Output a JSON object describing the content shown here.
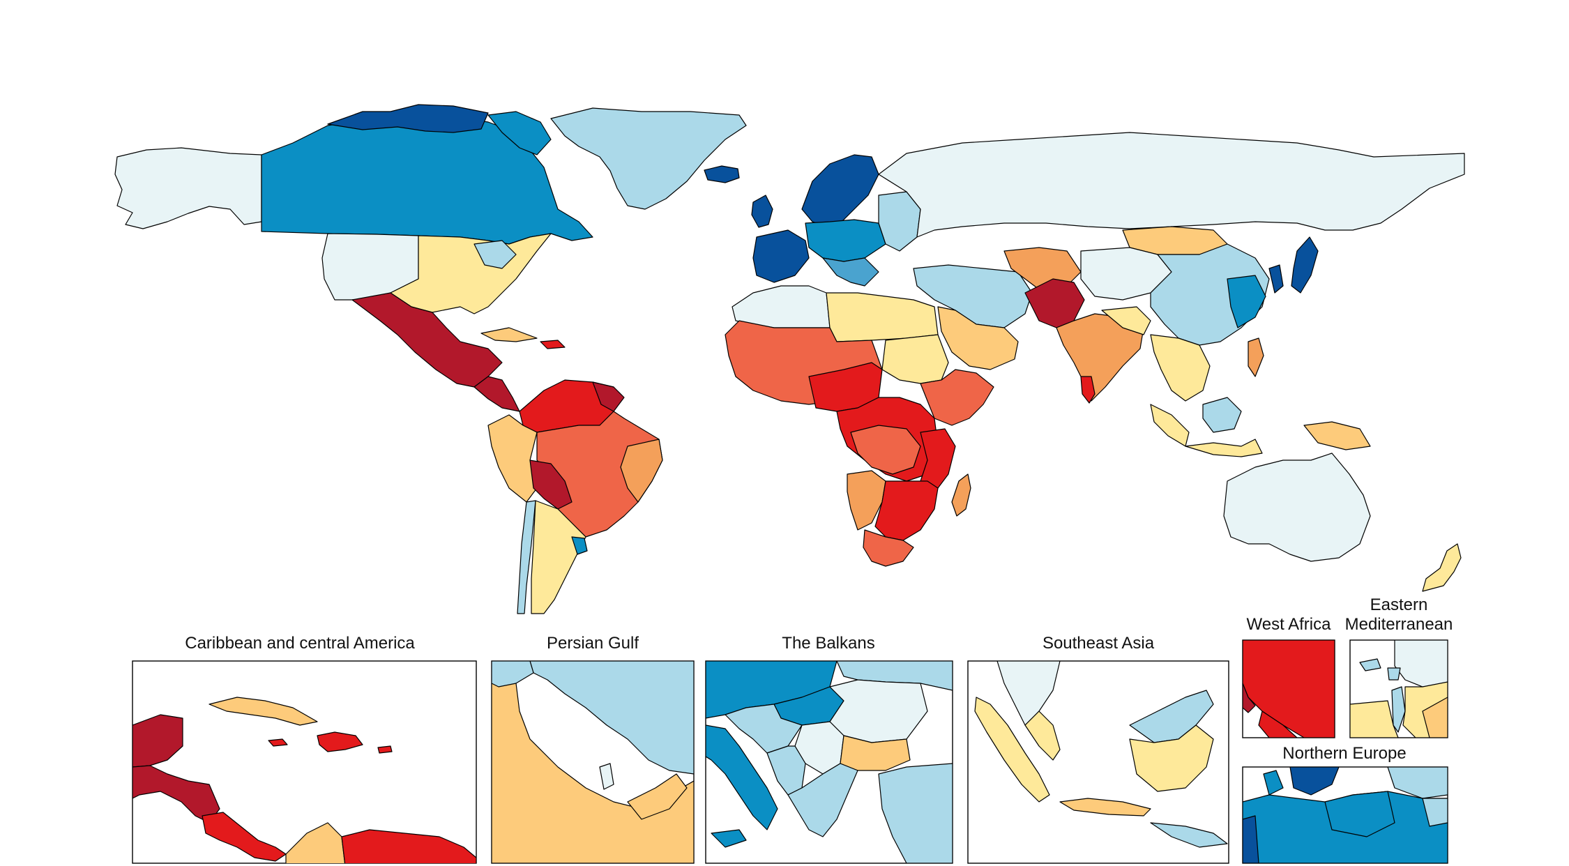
{
  "palette": {
    "dark_red": "#b2182b",
    "red": "#e31a1c",
    "orange_red": "#ef6548",
    "orange": "#f4a05a",
    "light_orange": "#fdcb7b",
    "yellow": "#fee99a",
    "pale_cyan": "#e8f4f6",
    "light_blue": "#abd9e9",
    "mid_blue": "#4aa3cf",
    "blue": "#0b8fc4",
    "dark_blue": "#08519c",
    "background": "#ffffff"
  },
  "insets": [
    {
      "id": "caribbean",
      "title": "Caribbean and central America"
    },
    {
      "id": "persian-gulf",
      "title": "Persian Gulf"
    },
    {
      "id": "balkans",
      "title": "The Balkans"
    },
    {
      "id": "southeast-asia",
      "title": "Southeast Asia"
    },
    {
      "id": "west-africa",
      "title": "West Africa"
    },
    {
      "id": "eastern-mediterranean",
      "title_line1": "Eastern",
      "title_line2": "Mediterranean"
    },
    {
      "id": "northern-europe",
      "title": "Northern Europe"
    }
  ]
}
